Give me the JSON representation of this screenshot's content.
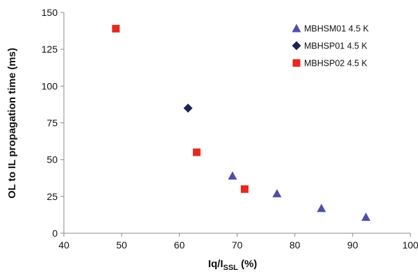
{
  "chart_data": {
    "type": "scatter",
    "title": "",
    "xlabel_main": "Iq/I",
    "xlabel_sub": "SSL",
    "xlabel_unit": " (%)",
    "ylabel": "OL to IL propagation time (ms)",
    "xlim": [
      40,
      100
    ],
    "ylim": [
      0,
      150
    ],
    "x_ticks": [
      40,
      50,
      60,
      70,
      80,
      90,
      100
    ],
    "y_ticks": [
      0,
      25,
      50,
      75,
      100,
      125,
      150
    ],
    "grid": false,
    "legend_position": "top-right",
    "series": [
      {
        "name": "MBHSM01 4.5 K",
        "marker": "triangle",
        "color": "#4f4fa8",
        "points": [
          [
            69.2,
            39
          ],
          [
            76.9,
            27
          ],
          [
            84.6,
            17
          ],
          [
            92.3,
            11
          ]
        ]
      },
      {
        "name": "MBHSP01 4.5 K",
        "marker": "diamond",
        "color": "#1a2550",
        "points": [
          [
            61.5,
            85
          ]
        ]
      },
      {
        "name": "MBHSP02 4.5 K",
        "marker": "square",
        "color": "#e8271f",
        "points": [
          [
            49,
            139
          ],
          [
            63,
            55
          ],
          [
            71.3,
            30
          ]
        ]
      }
    ]
  }
}
